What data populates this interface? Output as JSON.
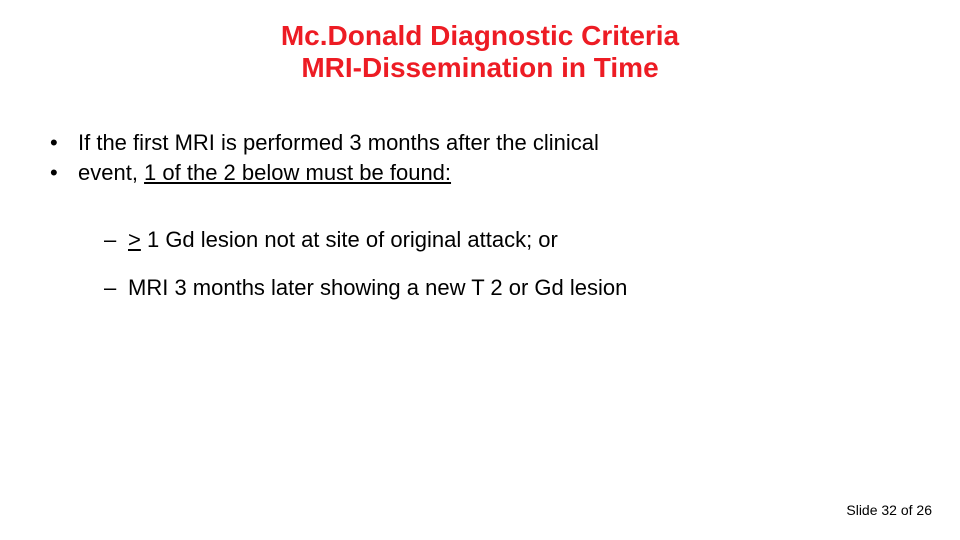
{
  "title": {
    "line1": "Mc.Donald Diagnostic Criteria",
    "line2": "MRI-Dissemination in Time",
    "color": "#ed1c24",
    "fontsize": 28,
    "weight": "bold"
  },
  "body": {
    "fontsize": 22,
    "text_color": "#000000",
    "bullets": [
      {
        "marker": "•",
        "text_plain": "If the first MRI is performed 3 months after the clinical"
      },
      {
        "marker": "•",
        "text_prefix": " event, ",
        "text_underlined": "1 of the 2 below must be found:"
      }
    ],
    "subbullets": [
      {
        "marker": "–",
        "prefix_underlined": ">",
        "rest": " 1 Gd lesion not at site of original attack; or"
      },
      {
        "marker": "–",
        "prefix_underlined": "",
        "rest": "MRI 3 months later showing a new T 2 or Gd lesion"
      }
    ]
  },
  "footer": {
    "text": "Slide 32 of 26",
    "fontsize": 14
  },
  "background_color": "#ffffff"
}
